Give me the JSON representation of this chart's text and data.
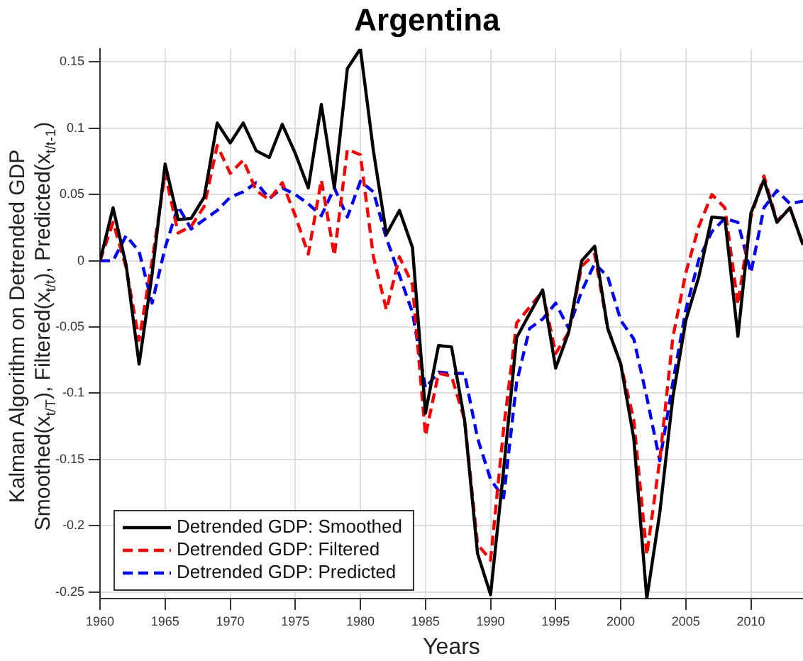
{
  "chart_data": {
    "type": "line",
    "title": "Argentina",
    "xlabel": "Years",
    "ylabel": "Kalman Algorithm on Detrended GDP\nSmoothed(x$_{t/T}$), Filtered(x$_{t/t}$), Predicted(x$_{t/t-1}$)",
    "x": [
      1960,
      1961,
      1962,
      1963,
      1964,
      1965,
      1966,
      1967,
      1968,
      1969,
      1970,
      1971,
      1972,
      1973,
      1974,
      1975,
      1976,
      1977,
      1978,
      1979,
      1980,
      1981,
      1982,
      1983,
      1984,
      1985,
      1986,
      1987,
      1988,
      1989,
      1990,
      1991,
      1992,
      1993,
      1994,
      1995,
      1996,
      1997,
      1998,
      1999,
      2000,
      2001,
      2002,
      2003,
      2004,
      2005,
      2006,
      2007,
      2008,
      2009,
      2010,
      2011,
      2012,
      2013,
      2014
    ],
    "series": [
      {
        "name": "Detrended GDP: Smoothed",
        "color": "#000000",
        "line_style": "solid",
        "values": [
          0,
          0.04,
          -0.003,
          -0.078,
          -0.01,
          0.073,
          0.031,
          0.032,
          0.048,
          0.104,
          0.089,
          0.104,
          0.083,
          0.078,
          0.103,
          0.081,
          0.055,
          0.118,
          0.055,
          0.145,
          0.16,
          0.083,
          0.02,
          0.038,
          0.01,
          -0.115,
          -0.064,
          -0.065,
          -0.12,
          -0.221,
          -0.252,
          -0.158,
          -0.058,
          -0.04,
          -0.022,
          -0.081,
          -0.054,
          0,
          0.011,
          -0.051,
          -0.078,
          -0.134,
          -0.255,
          -0.19,
          -0.103,
          -0.045,
          -0.012,
          0.033,
          0.032,
          -0.057,
          0.036,
          0.061,
          0.029,
          0.04,
          0.012
        ]
      },
      {
        "name": "Detrended GDP: Filtered",
        "color": "#ff0000",
        "line_style": "dashed",
        "values": [
          0,
          0.029,
          -0.005,
          -0.06,
          0,
          0.066,
          0.021,
          0.026,
          0.041,
          0.087,
          0.066,
          0.076,
          0.053,
          0.046,
          0.059,
          0.034,
          0.005,
          0.061,
          0.004,
          0.084,
          0.08,
          0.003,
          -0.037,
          0.003,
          -0.018,
          -0.132,
          -0.085,
          -0.087,
          -0.12,
          -0.214,
          -0.226,
          -0.127,
          -0.047,
          -0.035,
          -0.023,
          -0.07,
          -0.054,
          -0.004,
          0.005,
          -0.051,
          -0.078,
          -0.12,
          -0.222,
          -0.15,
          -0.058,
          -0.009,
          0.026,
          0.05,
          0.04,
          -0.033,
          0.033,
          0.064,
          0.03,
          0.04,
          0.012
        ]
      },
      {
        "name": "Detrended GDP: Predicted",
        "color": "#0000ff",
        "line_style": "dashed",
        "values": [
          0,
          0,
          0.019,
          0.007,
          -0.032,
          0.01,
          0.041,
          0.024,
          0.031,
          0.038,
          0.048,
          0.052,
          0.059,
          0.047,
          0.055,
          0.05,
          0.043,
          0.034,
          0.055,
          0.033,
          0.06,
          0.052,
          0.017,
          -0.011,
          -0.039,
          -0.096,
          -0.084,
          -0.085,
          -0.085,
          -0.134,
          -0.165,
          -0.179,
          -0.092,
          -0.051,
          -0.044,
          -0.032,
          -0.051,
          -0.023,
          -0.002,
          -0.012,
          -0.045,
          -0.059,
          -0.103,
          -0.151,
          -0.092,
          -0.037,
          0.001,
          0.022,
          0.032,
          0.029,
          -0.009,
          0.04,
          0.053,
          0.043,
          0.045
        ]
      }
    ],
    "xlim": [
      1960,
      2014
    ],
    "xticks": [
      1960,
      1965,
      1970,
      1975,
      1980,
      1985,
      1990,
      1995,
      2000,
      2005,
      2010
    ],
    "ylim": [
      -0.255,
      0.16
    ],
    "yticks": [
      -0.25,
      -0.2,
      -0.15,
      -0.1,
      -0.05,
      0,
      0.05,
      0.1,
      0.15
    ],
    "grid": true,
    "legend": "bottom left",
    "marker": "none"
  }
}
